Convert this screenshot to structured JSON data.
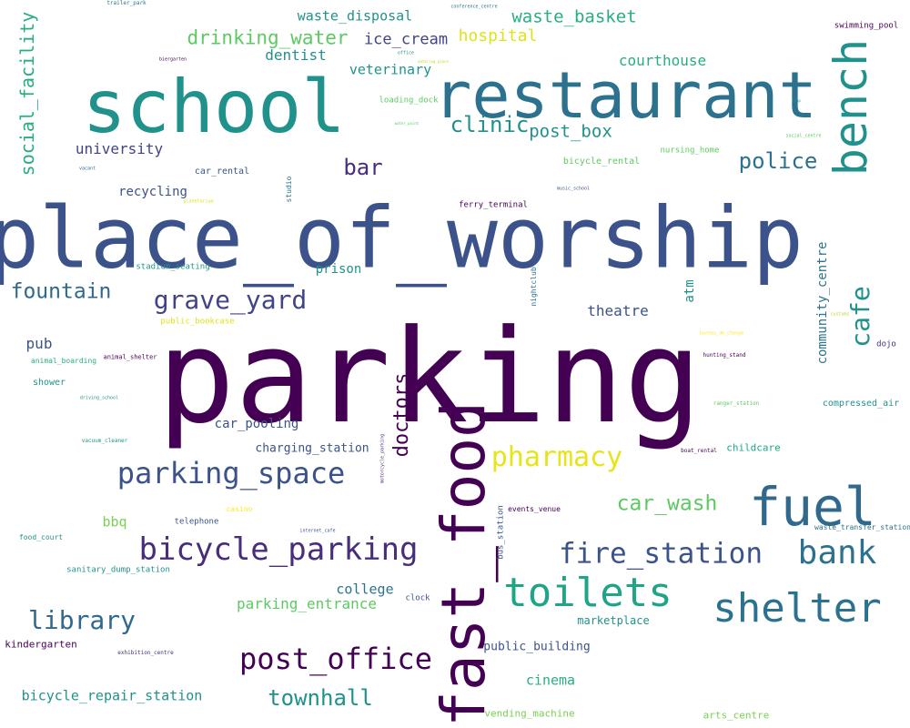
{
  "words": [
    {
      "text": "parking",
      "color": "#440154"
    },
    {
      "text": "place_of_worship",
      "color": "#3b528b"
    },
    {
      "text": "school",
      "color": "#21918c"
    },
    {
      "text": "restaurant",
      "color": "#2c728e"
    },
    {
      "text": "fast_food",
      "color": "#440154"
    },
    {
      "text": "bench",
      "color": "#21918c"
    },
    {
      "text": "fuel",
      "color": "#31688e"
    },
    {
      "text": "toilets",
      "color": "#20a486"
    },
    {
      "text": "shelter",
      "color": "#2c728e"
    },
    {
      "text": "bicycle_parking",
      "color": "#472d7b"
    },
    {
      "text": "parking_space",
      "color": "#3b528b"
    },
    {
      "text": "fire_station",
      "color": "#3b528b"
    },
    {
      "text": "bank",
      "color": "#2c728e"
    },
    {
      "text": "post_office",
      "color": "#440154"
    },
    {
      "text": "pharmacy",
      "color": "#e7e419"
    },
    {
      "text": "grave_yard",
      "color": "#414487"
    },
    {
      "text": "library",
      "color": "#31688e"
    },
    {
      "text": "cafe",
      "color": "#21918c"
    },
    {
      "text": "townhall",
      "color": "#21918c"
    },
    {
      "text": "doctors",
      "color": "#440154"
    },
    {
      "text": "police",
      "color": "#2c728e"
    },
    {
      "text": "clinic",
      "color": "#21918c"
    },
    {
      "text": "fountain",
      "color": "#31688e"
    },
    {
      "text": "car_wash",
      "color": "#5ec962"
    },
    {
      "text": "drinking_water",
      "color": "#5ec962"
    },
    {
      "text": "social_facility",
      "color": "#28ae80"
    },
    {
      "text": "bar",
      "color": "#472d7b"
    },
    {
      "text": "post_box",
      "color": "#21918c"
    },
    {
      "text": "waste_basket",
      "color": "#28ae80"
    },
    {
      "text": "hospital",
      "color": "#dde318"
    },
    {
      "text": "ice_cream",
      "color": "#414487"
    },
    {
      "text": "courthouse",
      "color": "#28ae80"
    },
    {
      "text": "university",
      "color": "#414487"
    },
    {
      "text": "dentist",
      "color": "#21918c"
    },
    {
      "text": "waste_disposal",
      "color": "#21918c"
    },
    {
      "text": "veterinary",
      "color": "#21918c"
    },
    {
      "text": "community_centre",
      "color": "#2c728e"
    },
    {
      "text": "theatre",
      "color": "#3b528b"
    },
    {
      "text": "parking_entrance",
      "color": "#5ec962"
    },
    {
      "text": "college",
      "color": "#2c728e"
    },
    {
      "text": "cinema",
      "color": "#28ae80"
    },
    {
      "text": "bicycle_repair_station",
      "color": "#21918c"
    },
    {
      "text": "pub",
      "color": "#3b528b"
    },
    {
      "text": "prison",
      "color": "#21918c"
    },
    {
      "text": "recycling",
      "color": "#3b528b"
    },
    {
      "text": "car_pooling",
      "color": "#3b528b"
    },
    {
      "text": "charging_station",
      "color": "#3b528b"
    },
    {
      "text": "atm",
      "color": "#21918c"
    },
    {
      "text": "bbq",
      "color": "#7ad151"
    },
    {
      "text": "public_building",
      "color": "#3b528b"
    },
    {
      "text": "marketplace",
      "color": "#21918c"
    },
    {
      "text": "childcare",
      "color": "#20a486"
    },
    {
      "text": "kindergarten",
      "color": "#440154"
    },
    {
      "text": "vending_machine",
      "color": "#7ad151"
    },
    {
      "text": "arts_centre",
      "color": "#7ad151"
    },
    {
      "text": "compressed_air",
      "color": "#21918c"
    },
    {
      "text": "car_rental",
      "color": "#3b528b"
    },
    {
      "text": "bicycle_rental",
      "color": "#5ec962"
    },
    {
      "text": "nursing_home",
      "color": "#5ec962"
    },
    {
      "text": "shower",
      "color": "#21918c"
    },
    {
      "text": "telephone",
      "color": "#3b528b"
    },
    {
      "text": "swimming_pool",
      "color": "#440154"
    },
    {
      "text": "stadium_seating",
      "color": "#21918c"
    },
    {
      "text": "public_bookcase",
      "color": "#dde318"
    },
    {
      "text": "dojo",
      "color": "#472d7b"
    },
    {
      "text": "loading_dock",
      "color": "#5ec962"
    },
    {
      "text": "ferry_terminal",
      "color": "#440154"
    },
    {
      "text": "bus_station",
      "color": "#3b528b"
    },
    {
      "text": "clock",
      "color": "#3b528b"
    },
    {
      "text": "events_venue",
      "color": "#440154"
    },
    {
      "text": "waste_transfer_station",
      "color": "#2c728e"
    },
    {
      "text": "sanitary_dump_station",
      "color": "#21918c"
    },
    {
      "text": "food_court",
      "color": "#21918c"
    },
    {
      "text": "studio",
      "color": "#2c728e"
    },
    {
      "text": "nightclub",
      "color": "#2c728e"
    },
    {
      "text": "casino",
      "color": "#fde725"
    },
    {
      "text": "animal_boarding",
      "color": "#28ae80"
    },
    {
      "text": "animal_shelter",
      "color": "#440154"
    },
    {
      "text": "hunting_stand",
      "color": "#440154"
    },
    {
      "text": "ranger_station",
      "color": "#5ec962"
    },
    {
      "text": "boat_rental",
      "color": "#440154"
    },
    {
      "text": "vacuum_cleaner",
      "color": "#21918c"
    },
    {
      "text": "driving_school",
      "color": "#21918c"
    },
    {
      "text": "motorcycle_parking",
      "color": "#482878"
    },
    {
      "text": "exhibition_centre",
      "color": "#472d7b"
    },
    {
      "text": "internet_cafe",
      "color": "#3b528b"
    },
    {
      "text": "social_centre",
      "color": "#5ec962"
    },
    {
      "text": "music_school",
      "color": "#3b528b"
    },
    {
      "text": "planetarium",
      "color": "#dde318"
    },
    {
      "text": "biergarten",
      "color": "#440154"
    },
    {
      "text": "vacant",
      "color": "#31688e"
    },
    {
      "text": "trailer_park",
      "color": "#2c728e"
    },
    {
      "text": "conference_centre",
      "color": "#2c728e"
    },
    {
      "text": "office",
      "color": "#21918c"
    },
    {
      "text": "watering_place",
      "color": "#bddf26"
    },
    {
      "text": "water_point",
      "color": "#5ec962"
    },
    {
      "text": "snap",
      "color": "#21918c"
    },
    {
      "text": "bureau_de_change",
      "color": "#fde725"
    },
    {
      "text": "customs",
      "color": "#b5de2b"
    }
  ]
}
